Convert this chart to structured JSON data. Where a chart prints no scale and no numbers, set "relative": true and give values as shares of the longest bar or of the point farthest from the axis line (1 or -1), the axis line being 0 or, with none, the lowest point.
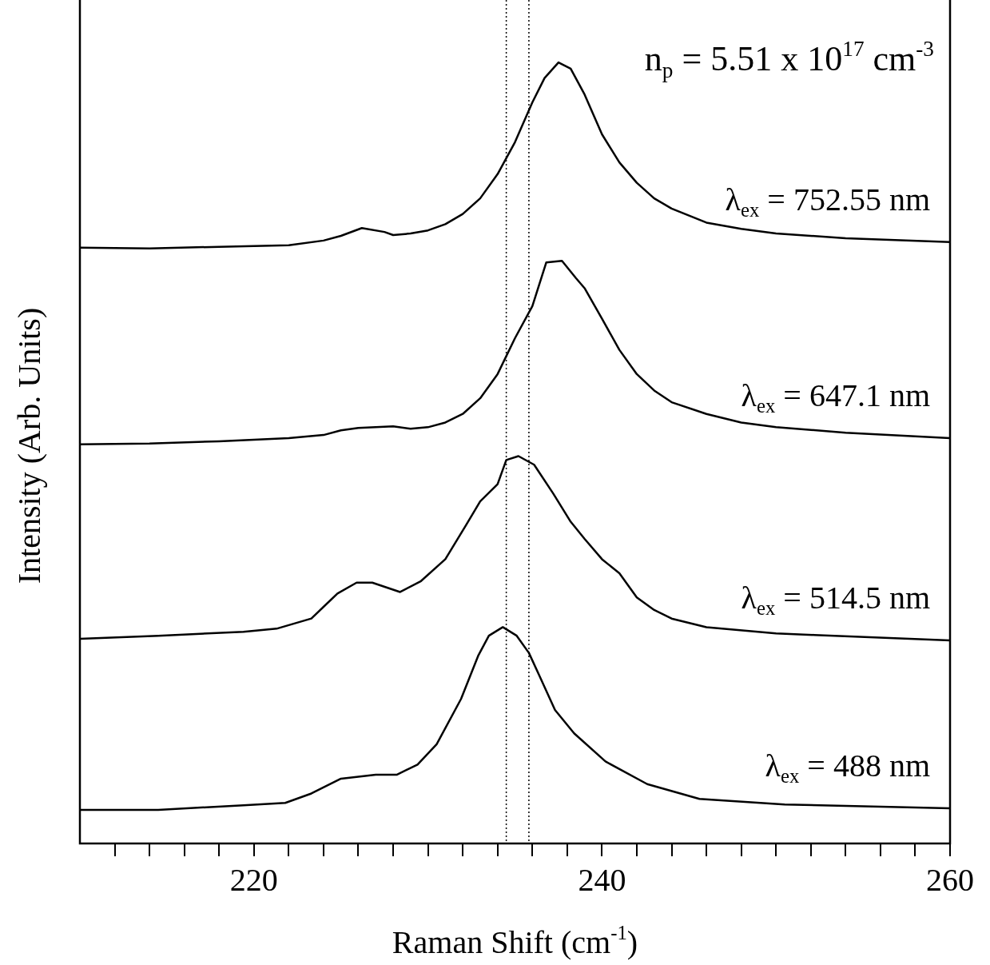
{
  "chart_data": {
    "type": "line",
    "relative": true,
    "xlabel": "Raman Shift (cm$^{-1}$)",
    "ylabel": "Intensity (Arb. Units)",
    "annotations": [
      "n$_{p}$ = 5.51 x 10$^{17}$ cm$^{-3}$"
    ],
    "xlim": [
      210,
      260
    ],
    "xticks": [
      {
        "value": 212,
        "label": null
      },
      {
        "value": 214,
        "label": null
      },
      {
        "value": 216,
        "label": null
      },
      {
        "value": 218,
        "label": null
      },
      220,
      {
        "value": 222,
        "label": null
      },
      {
        "value": 224,
        "label": null
      },
      {
        "value": 226,
        "label": null
      },
      {
        "value": 228,
        "label": null
      },
      {
        "value": 230,
        "label": null
      },
      {
        "value": 232,
        "label": null
      },
      {
        "value": 234,
        "label": null
      },
      {
        "value": 236,
        "label": null
      },
      {
        "value": 238,
        "label": null
      },
      240,
      {
        "value": 242,
        "label": null
      },
      {
        "value": 244,
        "label": null
      },
      {
        "value": 246,
        "label": null
      },
      {
        "value": 248,
        "label": null
      },
      {
        "value": 250,
        "label": null
      },
      {
        "value": 252,
        "label": null
      },
      {
        "value": 254,
        "label": null
      },
      {
        "value": 256,
        "label": null
      },
      {
        "value": 258,
        "label": null
      },
      260
    ],
    "tick_labels": "x",
    "legend": false,
    "line_style": "solid",
    "ref_lines": [
      {
        "axis": "x",
        "value": 234.5,
        "color": "#000000",
        "line_style": "dotted"
      },
      {
        "axis": "x",
        "value": 235.8,
        "color": "#000000",
        "line_style": "dotted"
      }
    ],
    "series": [
      {
        "name": "λ$_{ex}$ = 752.55 nm",
        "color": "#000000",
        "x": [
          210,
          214,
          218,
          222,
          224,
          225,
          226.2,
          227.5,
          228,
          229,
          230,
          231,
          232,
          233,
          234,
          235,
          236,
          236.7,
          237.5,
          238.2,
          239,
          240,
          241,
          242,
          243,
          244,
          246,
          248,
          250,
          254,
          260
        ],
        "values": [
          0.763,
          0.762,
          0.764,
          0.766,
          0.772,
          0.778,
          0.788,
          0.783,
          0.779,
          0.781,
          0.785,
          0.793,
          0.806,
          0.826,
          0.857,
          0.898,
          0.949,
          0.98,
          1.0,
          0.992,
          0.959,
          0.908,
          0.872,
          0.846,
          0.826,
          0.813,
          0.795,
          0.787,
          0.781,
          0.775,
          0.77
        ]
      },
      {
        "name": "λ$_{ex}$ = 647.1 nm",
        "color": "#000000",
        "x": [
          210,
          214,
          218,
          222,
          224,
          225,
          226,
          228,
          229,
          230,
          231,
          232,
          233,
          234,
          235,
          236,
          236.8,
          237.7,
          238.5,
          239,
          240,
          241,
          242,
          243,
          244,
          246,
          248,
          250,
          254,
          260
        ],
        "values": [
          0.511,
          0.512,
          0.515,
          0.519,
          0.523,
          0.529,
          0.532,
          0.534,
          0.531,
          0.533,
          0.539,
          0.55,
          0.57,
          0.601,
          0.647,
          0.688,
          0.744,
          0.746,
          0.724,
          0.711,
          0.672,
          0.632,
          0.601,
          0.58,
          0.565,
          0.55,
          0.539,
          0.533,
          0.526,
          0.519
        ]
      },
      {
        "name": "λ$_{ex}$ = 514.5 nm",
        "color": "#000000",
        "x": [
          210,
          214.5,
          219.4,
          221.3,
          223.3,
          224,
          224.8,
          225.9,
          226.8,
          228.4,
          229.6,
          231,
          232.2,
          233,
          234,
          234.5,
          235.2,
          236.1,
          237.2,
          238.2,
          239,
          240,
          241,
          242,
          243,
          244,
          246,
          250,
          252.2,
          260
        ],
        "values": [
          0.262,
          0.266,
          0.271,
          0.275,
          0.288,
          0.303,
          0.32,
          0.334,
          0.334,
          0.322,
          0.336,
          0.364,
          0.408,
          0.438,
          0.46,
          0.491,
          0.496,
          0.485,
          0.448,
          0.412,
          0.39,
          0.364,
          0.346,
          0.315,
          0.299,
          0.288,
          0.277,
          0.269,
          0.267,
          0.26
        ]
      },
      {
        "name": "λ$_{ex}$ = 488 nm",
        "color": "#000000",
        "x": [
          210,
          214.5,
          219.4,
          221.8,
          223.3,
          225,
          227,
          228.2,
          229.4,
          230.5,
          231.9,
          232.9,
          233.5,
          234.3,
          235.1,
          235.8,
          236.4,
          237.3,
          238.4,
          240.2,
          242.6,
          245.6,
          250.5,
          260
        ],
        "values": [
          0.043,
          0.043,
          0.049,
          0.052,
          0.064,
          0.083,
          0.088,
          0.088,
          0.101,
          0.127,
          0.185,
          0.241,
          0.266,
          0.277,
          0.266,
          0.244,
          0.215,
          0.171,
          0.141,
          0.105,
          0.076,
          0.057,
          0.05,
          0.045
        ]
      }
    ]
  }
}
